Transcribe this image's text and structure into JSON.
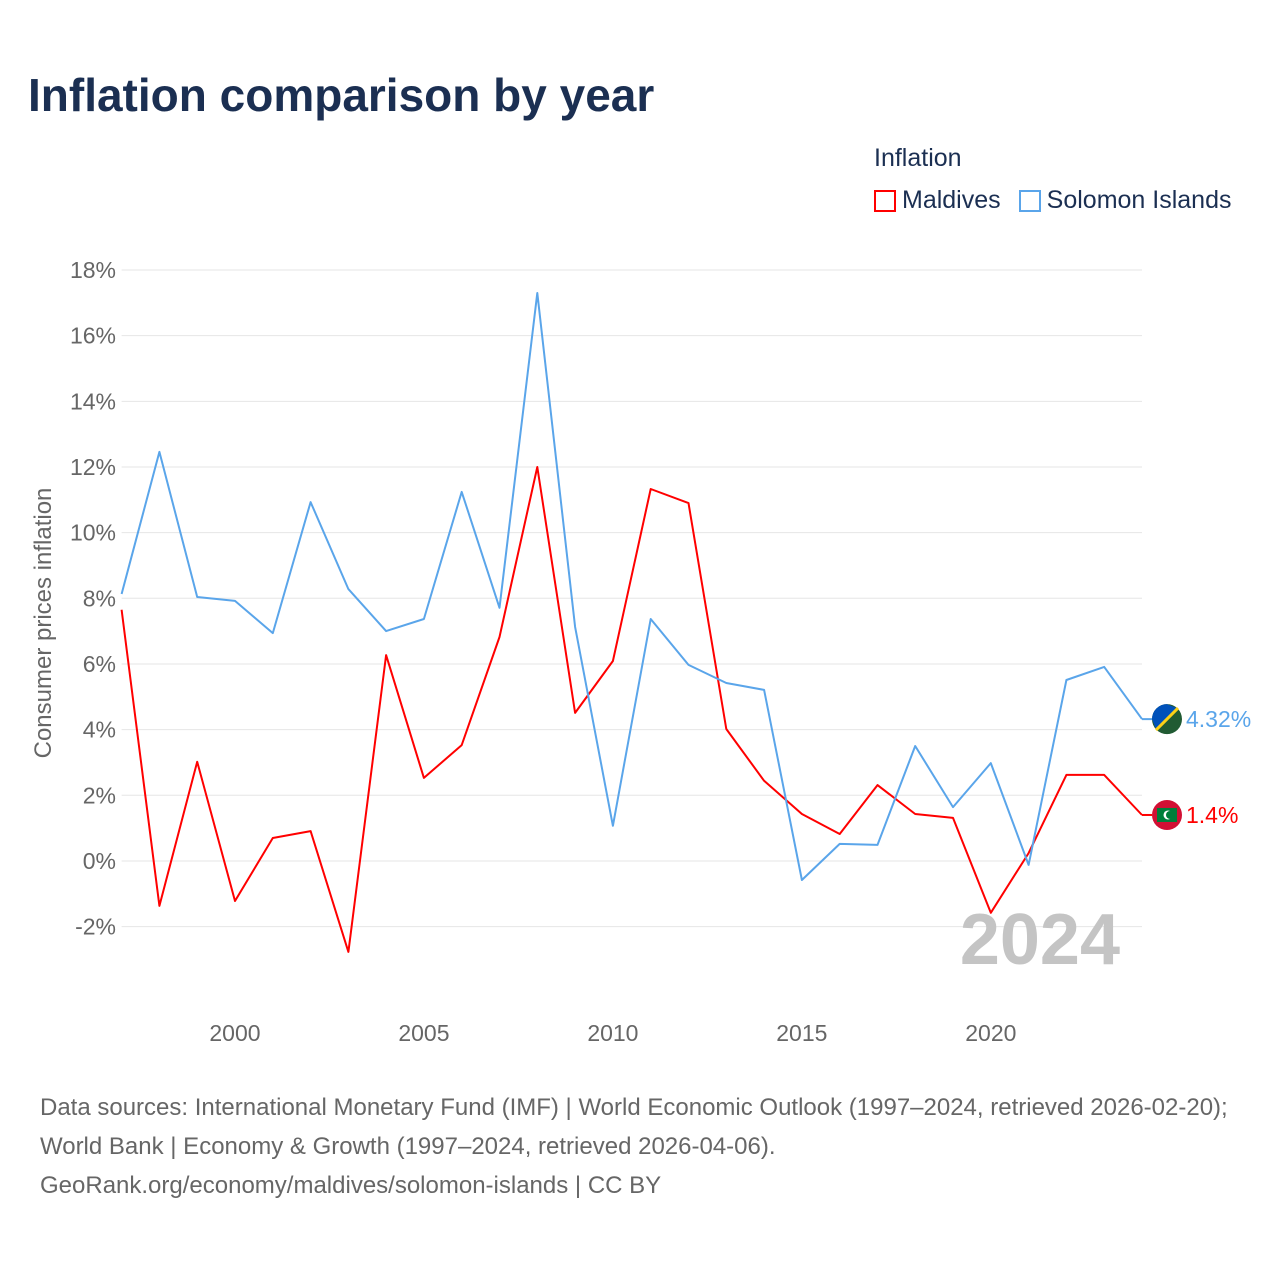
{
  "title": "Inflation comparison by year",
  "legend": {
    "title": "Inflation",
    "items": [
      {
        "name": "Maldives",
        "color": "#ff0000"
      },
      {
        "name": "Solomon Islands",
        "color": "#5aa5ea"
      }
    ]
  },
  "chart_data": {
    "type": "line",
    "title": "Inflation comparison by year",
    "xlabel": "",
    "ylabel": "Consumer prices inflation",
    "xlim": [
      1997,
      2024
    ],
    "ylim": [
      -4,
      18
    ],
    "yticks": [
      -2,
      0,
      2,
      4,
      6,
      8,
      10,
      12,
      14,
      16,
      18
    ],
    "ytick_labels": [
      "-2%",
      "0%",
      "2%",
      "4%",
      "6%",
      "8%",
      "10%",
      "12%",
      "14%",
      "16%",
      "18%"
    ],
    "xticks": [
      2000,
      2005,
      2010,
      2015,
      2020
    ],
    "xtick_labels": [
      "2000",
      "2005",
      "2010",
      "2015",
      "2020"
    ],
    "grid": true,
    "legend_position": "top-right",
    "year_label": "2024",
    "x": [
      1997,
      1998,
      1999,
      2000,
      2001,
      2002,
      2003,
      2004,
      2005,
      2006,
      2007,
      2008,
      2009,
      2010,
      2011,
      2012,
      2013,
      2014,
      2015,
      2016,
      2017,
      2018,
      2019,
      2020,
      2021,
      2022,
      2023,
      2024
    ],
    "series": [
      {
        "name": "Maldives",
        "color": "#ff0000",
        "end_label": "1.4%",
        "values": [
          7.65,
          -1.37,
          3.02,
          -1.22,
          0.7,
          0.91,
          -2.77,
          6.27,
          2.53,
          3.53,
          6.82,
          12.0,
          4.51,
          6.09,
          11.33,
          10.9,
          4.02,
          2.44,
          1.43,
          0.82,
          2.31,
          1.43,
          1.31,
          -1.58,
          0.24,
          2.62,
          2.62,
          1.4
        ]
      },
      {
        "name": "Solomon Islands",
        "color": "#5aa5ea",
        "end_label": "4.32%",
        "values": [
          8.13,
          12.46,
          8.04,
          7.92,
          6.94,
          10.93,
          8.28,
          7.0,
          7.37,
          11.24,
          7.71,
          17.3,
          7.13,
          1.07,
          7.37,
          5.97,
          5.42,
          5.21,
          -0.58,
          0.52,
          0.49,
          3.5,
          1.64,
          2.98,
          -0.12,
          5.51,
          5.91,
          4.32
        ]
      }
    ]
  },
  "footer": {
    "sources": "Data sources: International Monetary Fund (IMF) | World Economic Outlook (1997–2024, retrieved 2026-02-20); World Bank | Economy & Growth (1997–2024, retrieved 2026-04-06).",
    "link": "GeoRank.org/economy/maldives/solomon-islands | CC BY"
  }
}
